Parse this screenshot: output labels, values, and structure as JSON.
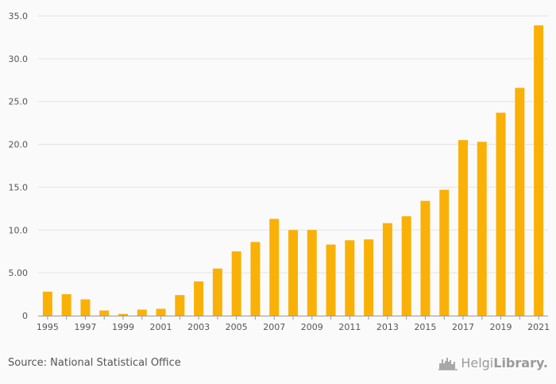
{
  "chart_data": {
    "type": "bar",
    "categories": [
      "1995",
      "1996",
      "1997",
      "1998",
      "1999",
      "2000",
      "2001",
      "2002",
      "2003",
      "2004",
      "2005",
      "2006",
      "2007",
      "2008",
      "2009",
      "2010",
      "2011",
      "2012",
      "2013",
      "2014",
      "2015",
      "2016",
      "2017",
      "2018",
      "2019",
      "2020",
      "2021"
    ],
    "values": [
      2.8,
      2.5,
      1.9,
      0.6,
      0.2,
      0.7,
      0.8,
      2.4,
      4.0,
      5.5,
      7.5,
      8.6,
      11.3,
      10.0,
      10.0,
      8.3,
      8.8,
      8.9,
      10.8,
      11.6,
      13.4,
      14.7,
      20.5,
      20.3,
      23.7,
      26.6,
      33.9
    ],
    "x_tick_labels": [
      "1995",
      "1997",
      "1999",
      "2001",
      "2003",
      "2005",
      "2007",
      "2009",
      "2011",
      "2013",
      "2015",
      "2017",
      "2019",
      "2021"
    ],
    "y_tick_labels": [
      "0",
      "5.00",
      "10.0",
      "15.0",
      "20.0",
      "25.0",
      "30.0",
      "35.0"
    ],
    "ylim": [
      0,
      35
    ],
    "grid": true,
    "title": "",
    "xlabel": "",
    "ylabel": "",
    "bar_color": "#fab107"
  },
  "footer": {
    "source": "Source: National Statistical Office",
    "logo_part1": "Helgi",
    "logo_part2": "Library."
  }
}
